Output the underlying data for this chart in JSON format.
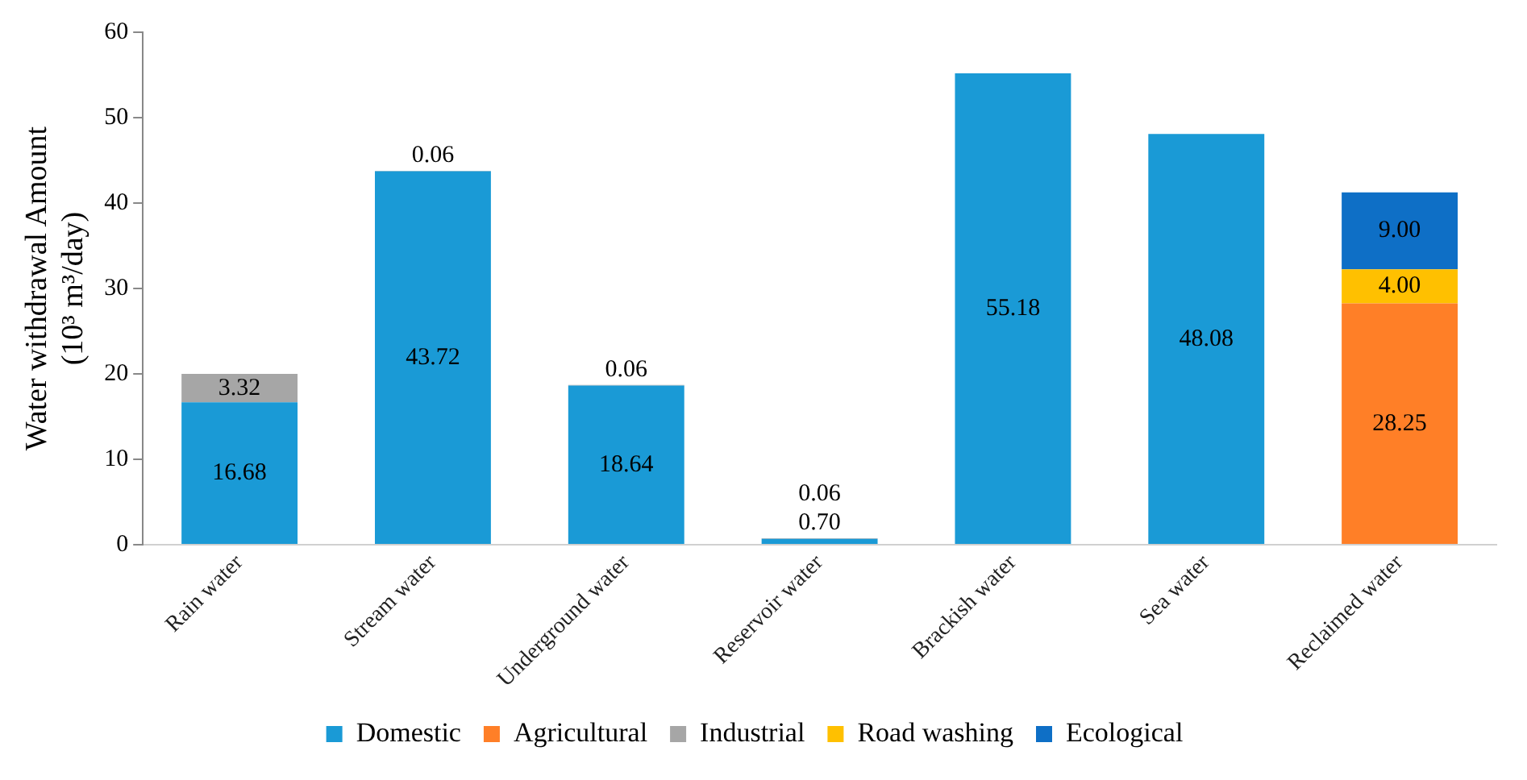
{
  "chart_data": {
    "type": "bar",
    "stacked": true,
    "ylabel": "Water withdrawal Amount (10³ m³/day)",
    "categories": [
      "Rain water",
      "Stream water",
      "Underground water",
      "Reservoir water",
      "Brackish water",
      "Sea water",
      "Reclaimed water"
    ],
    "series": [
      {
        "name": "Domestic",
        "color": "#1a9ad6",
        "values": [
          16.68,
          43.72,
          18.64,
          0.7,
          55.18,
          48.08,
          null
        ],
        "value_labels": [
          "16.68",
          "43.72",
          "18.64",
          "0.70",
          "55.18",
          "48.08",
          null
        ]
      },
      {
        "name": "Agricultural",
        "color": "#ff7f27",
        "values": [
          null,
          null,
          null,
          null,
          null,
          null,
          28.25
        ],
        "value_labels": [
          null,
          null,
          null,
          null,
          null,
          null,
          "28.25"
        ]
      },
      {
        "name": "Industrial",
        "color": "#a6a6a6",
        "values": [
          3.32,
          0.06,
          0.06,
          0.06,
          null,
          null,
          null
        ],
        "value_labels": [
          "3.32",
          "0.06",
          "0.06",
          "0.06",
          null,
          null,
          null
        ]
      },
      {
        "name": "Road washing",
        "color": "#ffc000",
        "values": [
          null,
          null,
          null,
          null,
          null,
          null,
          4.0
        ],
        "value_labels": [
          null,
          null,
          null,
          null,
          null,
          null,
          "4.00"
        ]
      },
      {
        "name": "Ecological",
        "color": "#0e6fc6",
        "values": [
          null,
          null,
          null,
          null,
          null,
          null,
          9.0
        ],
        "value_labels": [
          null,
          null,
          null,
          null,
          null,
          null,
          "9.00"
        ]
      }
    ],
    "ylim": [
      0,
      60
    ],
    "yticks": [
      0,
      10,
      20,
      30,
      40,
      50,
      60
    ],
    "grid": false,
    "legend": "bottom"
  }
}
